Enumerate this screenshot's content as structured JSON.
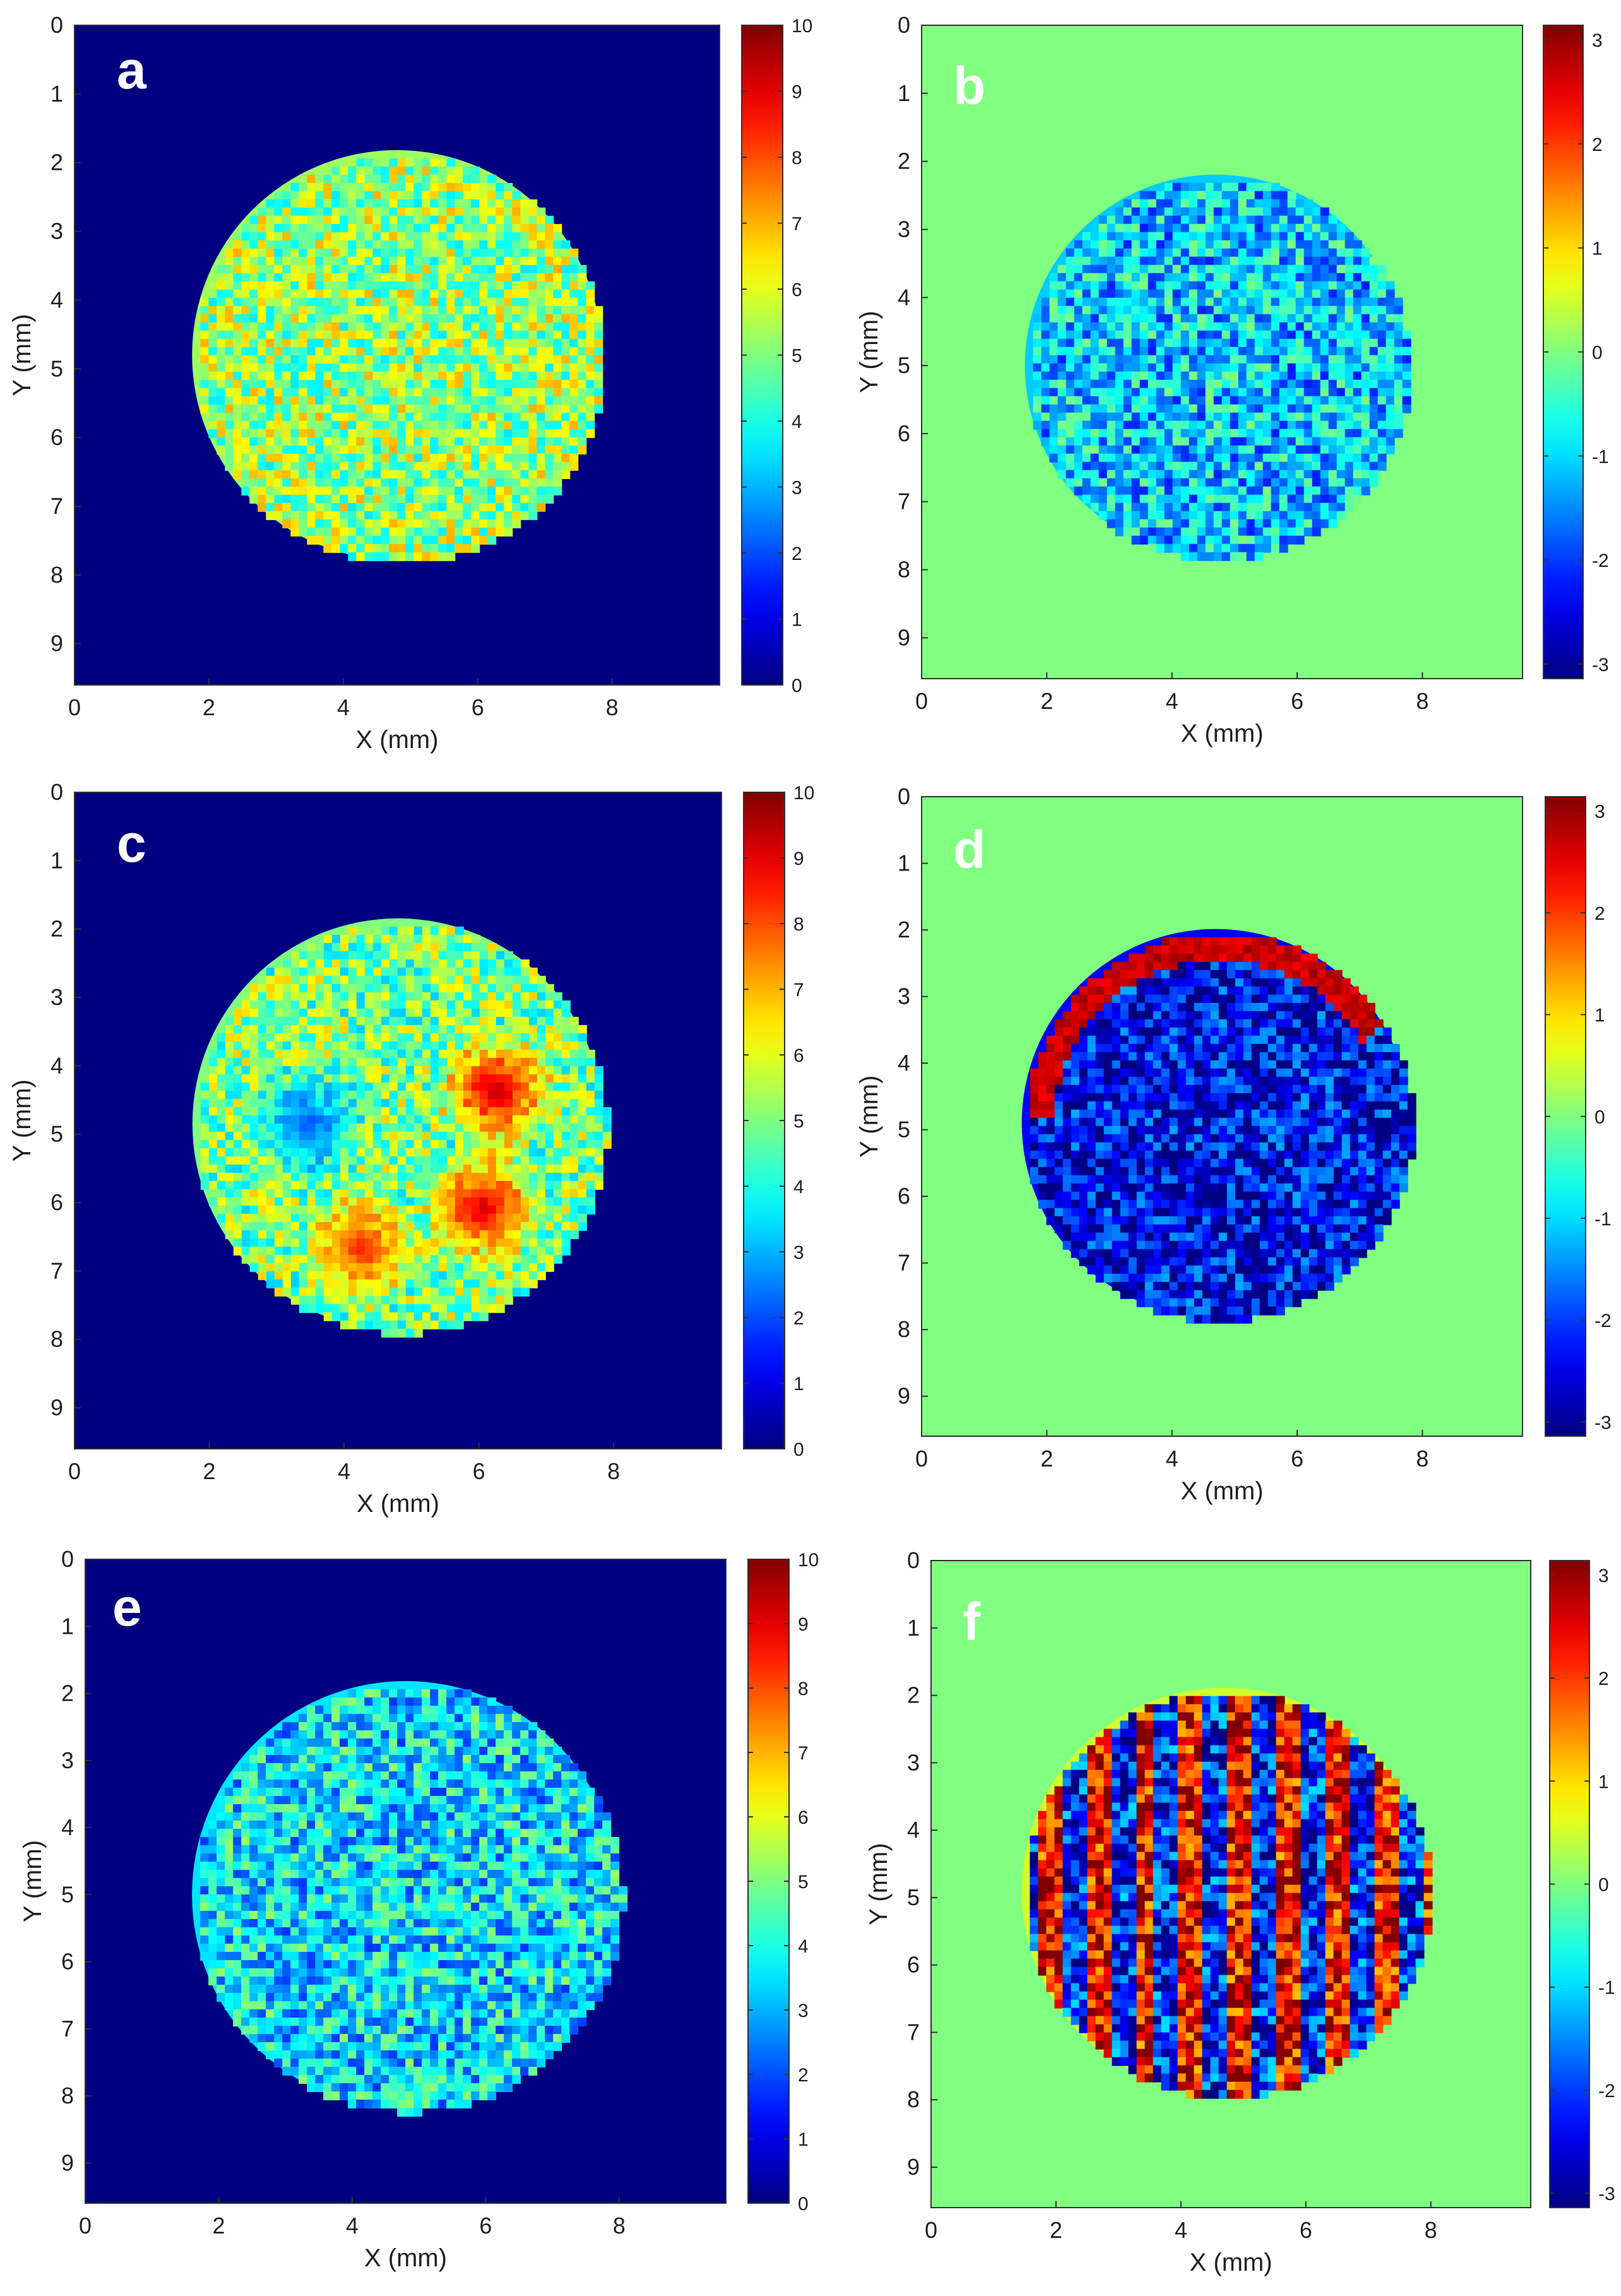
{
  "chart_data": [
    {
      "type": "heatmap",
      "panel_label": "a",
      "xlabel": "X (mm)",
      "ylabel": "Y (mm)",
      "xticks": [
        "0",
        "2",
        "4",
        "6",
        "8"
      ],
      "yticks": [
        "0",
        "1",
        "2",
        "3",
        "4",
        "5",
        "6",
        "7",
        "8",
        "9"
      ],
      "xlim": [
        0,
        9.6
      ],
      "ylim": [
        0,
        9.6
      ],
      "colorbar_ticks": [
        "10",
        "9",
        "8",
        "7",
        "6",
        "5",
        "4",
        "3",
        "2",
        "1",
        "0"
      ],
      "colorbar_range": [
        0,
        10
      ],
      "colormap": "jet",
      "background_value": 0,
      "disk": {
        "center_x_mm": 4.8,
        "center_y_mm": 4.8,
        "radius_mm": 3.05
      },
      "disk_mean_value": 5.3
    },
    {
      "type": "heatmap",
      "panel_label": "b",
      "xlabel": "X (mm)",
      "ylabel": "Y (mm)",
      "xticks": [
        "0",
        "2",
        "4",
        "6",
        "8"
      ],
      "yticks": [
        "0",
        "1",
        "2",
        "3",
        "4",
        "5",
        "6",
        "7",
        "8",
        "9"
      ],
      "xlim": [
        0,
        9.6
      ],
      "ylim": [
        0,
        9.6
      ],
      "colorbar_ticks": [
        "3",
        "2",
        "1",
        "0",
        "-1",
        "-2",
        "-3"
      ],
      "colorbar_range": [
        -3.14,
        3.14
      ],
      "colormap": "jet",
      "background_value": 0,
      "disk": {
        "center_x_mm": 4.7,
        "center_y_mm": 5.0,
        "radius_mm": 3.05
      },
      "disk_mean_value": -1.1
    },
    {
      "type": "heatmap",
      "panel_label": "c",
      "xlabel": "X (mm)",
      "ylabel": "Y (mm)",
      "xticks": [
        "0",
        "2",
        "4",
        "6",
        "8"
      ],
      "yticks": [
        "0",
        "1",
        "2",
        "3",
        "4",
        "5",
        "6",
        "7",
        "8",
        "9"
      ],
      "xlim": [
        0,
        9.6
      ],
      "ylim": [
        0,
        9.6
      ],
      "colorbar_ticks": [
        "10",
        "9",
        "8",
        "7",
        "6",
        "5",
        "4",
        "3",
        "2",
        "1",
        "0"
      ],
      "colorbar_range": [
        0,
        10
      ],
      "colormap": "jet",
      "background_value": 0,
      "disk": {
        "center_x_mm": 4.8,
        "center_y_mm": 4.85,
        "radius_mm": 3.05
      },
      "disk_mean_value": 5.0,
      "hotspots": [
        {
          "x_mm": 6.2,
          "y_mm": 4.3,
          "value": 9.5
        },
        {
          "x_mm": 6.0,
          "y_mm": 6.0,
          "value": 9.3
        },
        {
          "x_mm": 4.2,
          "y_mm": 6.6,
          "value": 8.5
        },
        {
          "x_mm": 3.4,
          "y_mm": 4.8,
          "value": 2.0
        }
      ]
    },
    {
      "type": "heatmap",
      "panel_label": "d",
      "xlabel": "X (mm)",
      "ylabel": "Y (mm)",
      "xticks": [
        "0",
        "2",
        "4",
        "6",
        "8"
      ],
      "yticks": [
        "0",
        "1",
        "2",
        "3",
        "4",
        "5",
        "6",
        "7",
        "8",
        "9"
      ],
      "xlim": [
        0,
        9.6
      ],
      "ylim": [
        0,
        9.6
      ],
      "colorbar_ticks": [
        "3",
        "2",
        "1",
        "0",
        "-1",
        "-2",
        "-3"
      ],
      "colorbar_range": [
        -3.14,
        3.14
      ],
      "colormap": "jet",
      "background_value": 0,
      "disk": {
        "center_x_mm": 4.7,
        "center_y_mm": 4.9,
        "radius_mm": 3.1
      },
      "disk_mean_value": -2.4,
      "edge_band_value": 3.0
    },
    {
      "type": "heatmap",
      "panel_label": "e",
      "xlabel": "X (mm)",
      "ylabel": "Y (mm)",
      "xticks": [
        "0",
        "2",
        "4",
        "6",
        "8"
      ],
      "yticks": [
        "0",
        "1",
        "2",
        "3",
        "4",
        "5",
        "6",
        "7",
        "8",
        "9"
      ],
      "xlim": [
        0,
        9.6
      ],
      "ylim": [
        0,
        9.6
      ],
      "colorbar_ticks": [
        "10",
        "9",
        "8",
        "7",
        "6",
        "5",
        "4",
        "3",
        "2",
        "1",
        "0"
      ],
      "colorbar_range": [
        0,
        10
      ],
      "colormap": "jet",
      "background_value": 0,
      "disk": {
        "center_x_mm": 4.8,
        "center_y_mm": 5.0,
        "radius_mm": 3.2
      },
      "disk_mean_value": 3.5
    },
    {
      "type": "heatmap",
      "panel_label": "f",
      "xlabel": "X (mm)",
      "ylabel": "Y (mm)",
      "xticks": [
        "0",
        "2",
        "4",
        "6",
        "8"
      ],
      "yticks": [
        "0",
        "1",
        "2",
        "3",
        "4",
        "5",
        "6",
        "7",
        "8",
        "9"
      ],
      "xlim": [
        0,
        9.6
      ],
      "ylim": [
        0,
        9.6
      ],
      "colorbar_ticks": [
        "3",
        "2",
        "1",
        "0",
        "-1",
        "-2",
        "-3"
      ],
      "colorbar_range": [
        -3.14,
        3.14
      ],
      "colormap": "jet",
      "background_value": 0,
      "disk": {
        "center_x_mm": 4.7,
        "center_y_mm": 4.9,
        "radius_mm": 3.25
      },
      "disk_mean_value": 0.5
    }
  ]
}
